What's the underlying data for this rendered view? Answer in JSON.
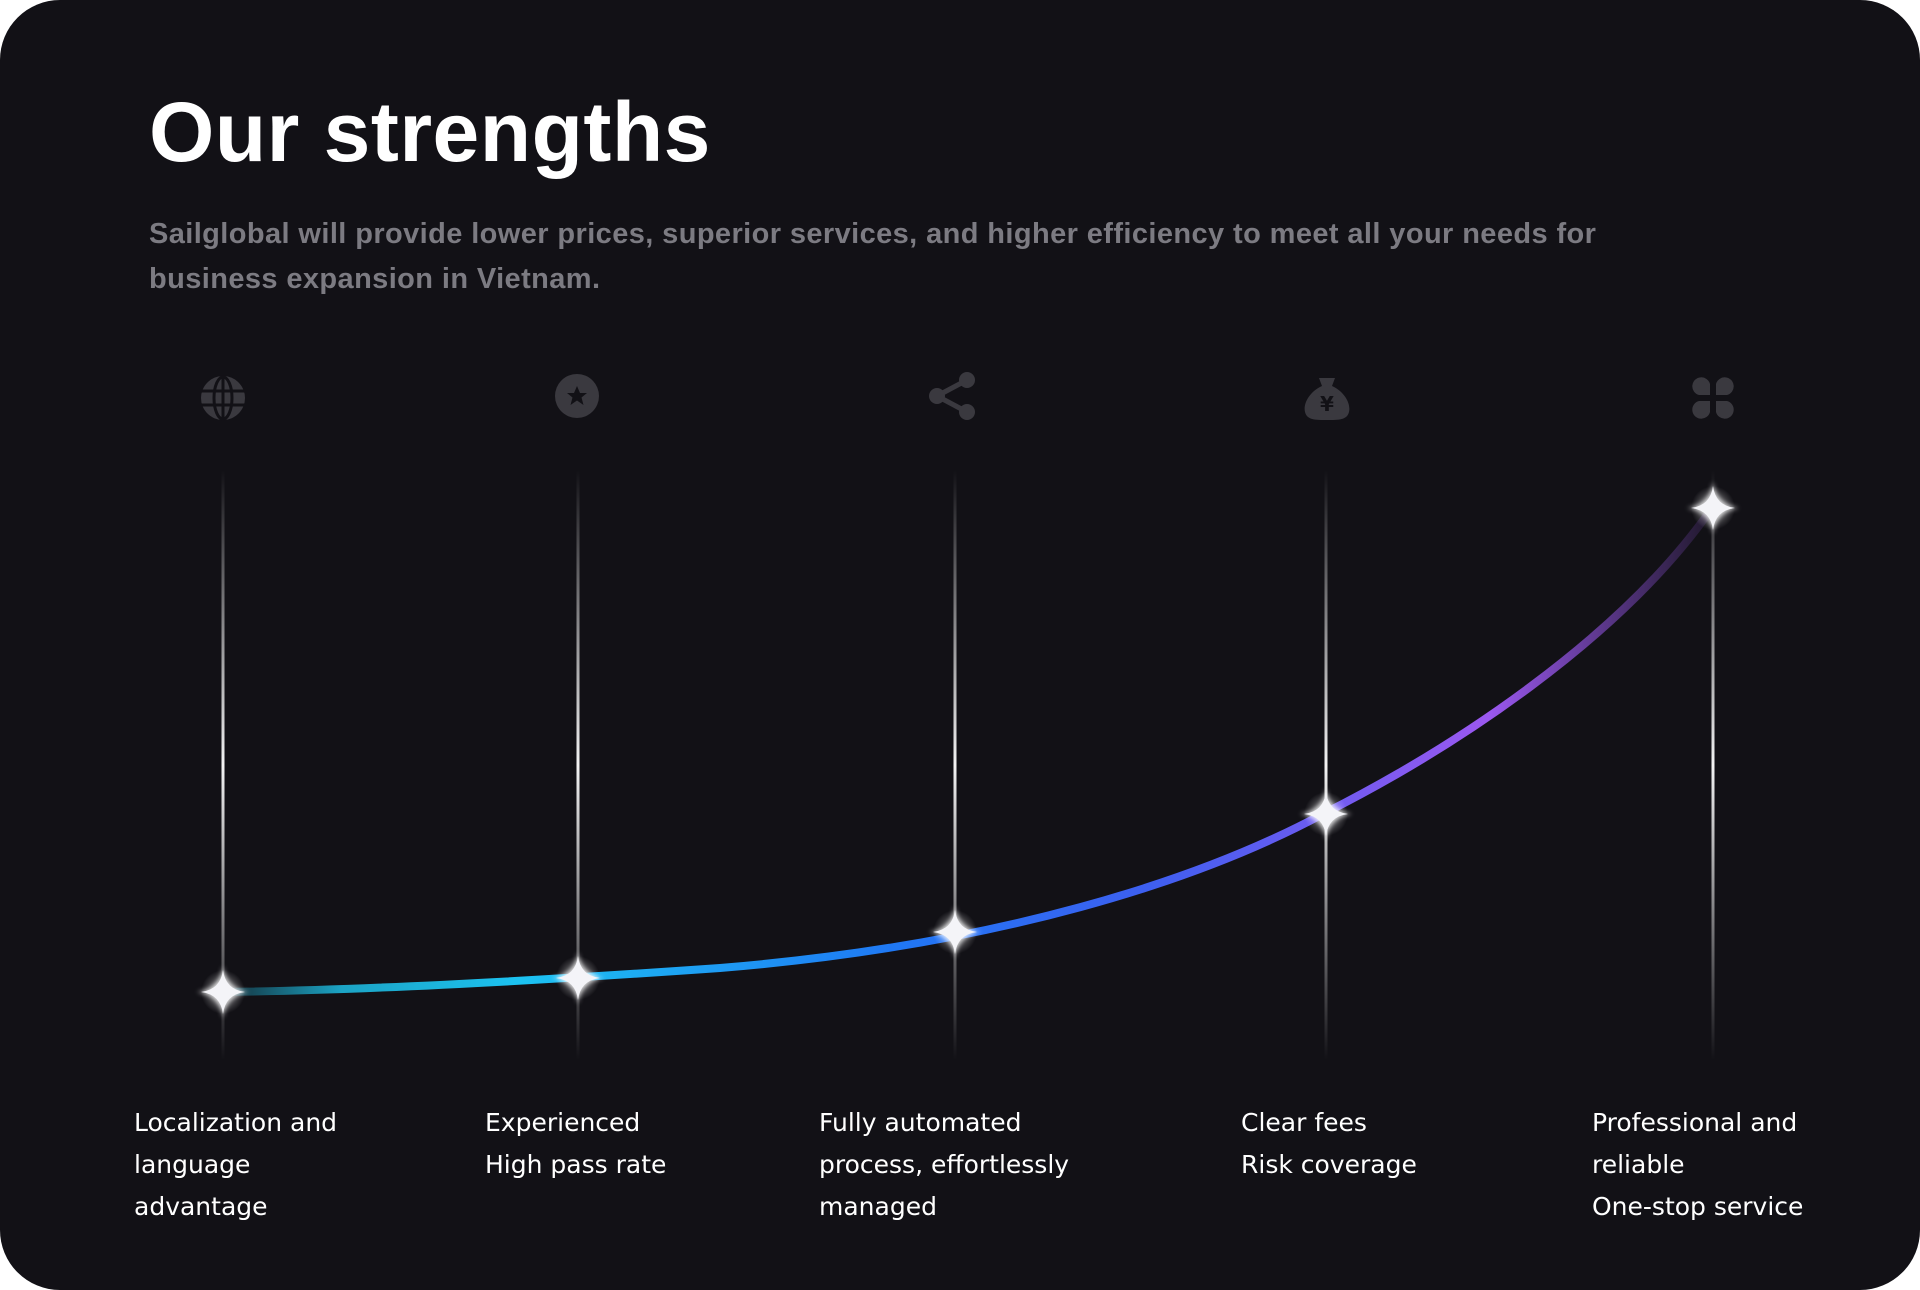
{
  "section": {
    "title": "Our strengths",
    "subtitle": "Sailglobal will provide lower prices, superior services, and higher efficiency to meet all your needs for business expansion in Vietnam."
  },
  "colors": {
    "background": "#121116",
    "title": "#ffffff",
    "subtitle": "#7c7b82",
    "icon": "#3a393f",
    "curve_start": "#1ec8f0",
    "curve_mid": "#1f6ff2",
    "curve_end": "#9b58f0"
  },
  "strengths": [
    {
      "icon": "globe-icon",
      "lines": [
        "Localization and",
        "language",
        "advantage"
      ]
    },
    {
      "icon": "star-badge-icon",
      "lines": [
        "Experienced",
        "High pass rate"
      ]
    },
    {
      "icon": "share-icon",
      "lines": [
        "Fully automated",
        "process, effortlessly",
        "managed"
      ]
    },
    {
      "icon": "money-bag-yen-icon",
      "lines": [
        "Clear fees",
        "Risk coverage"
      ]
    },
    {
      "icon": "four-leaf-grid-icon",
      "lines": [
        "Professional and",
        "reliable",
        "One-stop service"
      ]
    }
  ]
}
